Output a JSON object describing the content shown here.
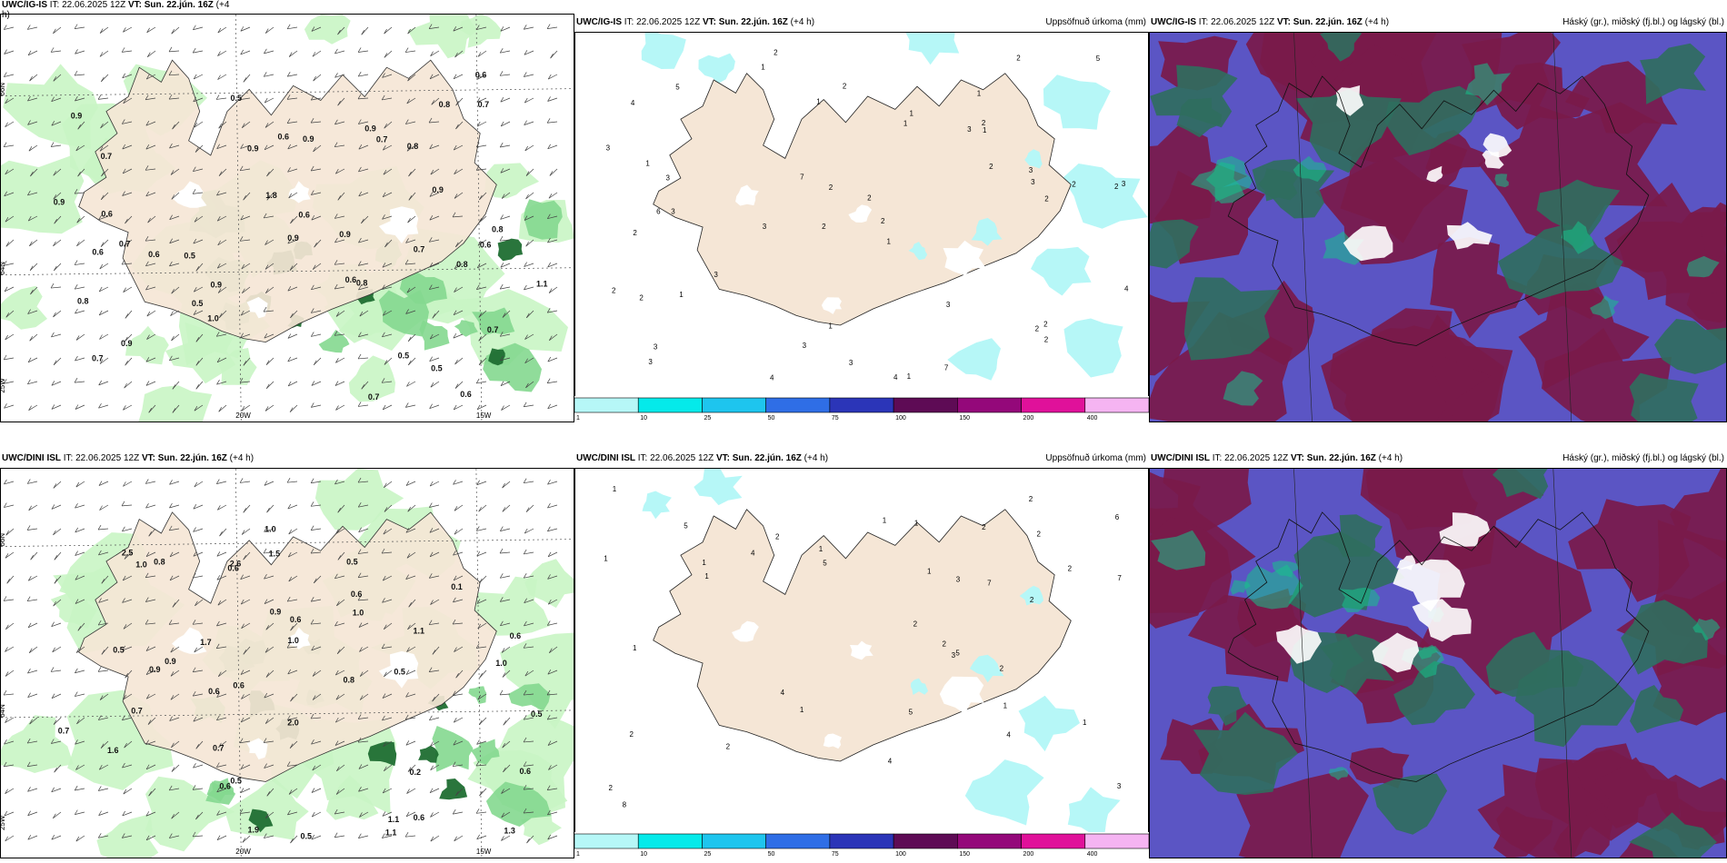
{
  "panels": {
    "row1": {
      "wind": {
        "header_model": "UWC/IG-IS",
        "header_it": "IT: 22.06.2025 12Z",
        "header_vt": "VT: Sun. 22.jún. 16Z",
        "header_lead": "(+4",
        "header_lead2": "h)",
        "lat_labels": [
          "66N",
          "64N"
        ],
        "lon_labels": [
          "20W",
          "15W",
          "25W"
        ],
        "values": [
          "0.6",
          "0.7",
          "0.6",
          "0.9",
          "0.7",
          "0.7",
          "0.9",
          "0.5",
          "0.8",
          "0.6",
          "0.7",
          "0.5",
          "1.0",
          "0.5",
          "0.9",
          "0.8",
          "0.7",
          "0.6",
          "0.9",
          "0.7",
          "0.6",
          "0.9",
          "0.9",
          "1.1",
          "0.8",
          "0.6",
          "0.6",
          "0.9",
          "1.8",
          "0.7",
          "0.8",
          "0.6",
          "0.5",
          "0.9",
          "0.9",
          "0.8",
          "0.6",
          "0.5",
          "0.8",
          "0.7",
          "0.9"
        ]
      },
      "precip": {
        "header_model": "UWC/IG-IS",
        "header_it": "IT: 22.06.2025 12Z",
        "header_vt": "VT: Sun. 22.jún. 16Z",
        "header_lead": "(+4 h)",
        "header_right": "Uppsöfnuð úrkoma (mm)",
        "values": [
          "2",
          "1",
          "2",
          "2",
          "1",
          "3",
          "4",
          "3",
          "2",
          "1",
          "2",
          "3",
          "1",
          "3",
          "4",
          "1",
          "1",
          "2",
          "2",
          "3",
          "3",
          "6",
          "3",
          "2",
          "2",
          "1",
          "2",
          "3",
          "2",
          "2",
          "2",
          "1",
          "1",
          "7",
          "3",
          "4",
          "3",
          "3",
          "5",
          "2",
          "3",
          "4",
          "7",
          "5",
          "3",
          "1",
          "2",
          "2",
          "3",
          "2",
          "1",
          "2"
        ]
      },
      "cloud": {
        "header_model": "UWC/IG-IS",
        "header_it": "IT: 22.06.2025 12Z",
        "header_vt": "VT: Sun. 22.jún. 16Z",
        "header_lead": "(+4 h)",
        "header_right": "Háský (gr.), miðský (fj.bl.) og lágský (bl.)"
      }
    },
    "row2": {
      "wind": {
        "header_model": "UWC/DINI ISL",
        "header_it": "IT: 22.06.2025 12Z",
        "header_vt": "VT: Sun. 22.jún. 16Z",
        "header_lead": "(+4 h)",
        "lat_labels": [
          "66N",
          "64N"
        ],
        "lon_labels": [
          "20W",
          "15W",
          "25W"
        ],
        "values": [
          "0.6",
          "0.6",
          "1.0",
          "0.6",
          "0.6",
          "0.5",
          "0.6",
          "0.6",
          "1.0",
          "0.2",
          "0.5",
          "0.8",
          "1.0",
          "1.5",
          "0.6",
          "0.5",
          "0.5",
          "1.6",
          "0.7",
          "0.5",
          "0.9",
          "0.8",
          "2.0",
          "0.6",
          "0.5",
          "0.1",
          "1.1",
          "0.9",
          "1.1",
          "1.1",
          "0.6",
          "1.0",
          "0.9",
          "0.7",
          "1.9",
          "2.5",
          "2.6",
          "1.3",
          "1.0",
          "0.7",
          "1.7"
        ]
      },
      "precip": {
        "header_model": "UWC/DINI ISL",
        "header_it": "IT: 22.06.2025 12Z",
        "header_vt": "VT: Sun. 22.jún. 16Z",
        "header_lead": "(+4 h)",
        "header_right": "Uppsöfnuð úrkoma (mm)",
        "values": [
          "1",
          "2",
          "1",
          "1",
          "1",
          "2",
          "2",
          "2",
          "1",
          "1",
          "2",
          "2",
          "1",
          "1",
          "2",
          "4",
          "2",
          "2",
          "3",
          "1",
          "2",
          "2",
          "1",
          "5",
          "3",
          "4",
          "6",
          "4",
          "4",
          "5",
          "3",
          "5",
          "5",
          "7",
          "7",
          "8",
          "1",
          "2",
          "1"
        ]
      },
      "cloud": {
        "header_model": "UWC/DINI ISL",
        "header_it": "IT: 22.06.2025 12Z",
        "header_vt": "VT: Sun. 22.jún. 16Z",
        "header_lead": "(+4 h)",
        "header_right": "Háský (gr.), miðský (fj.bl.) og lágský (bl.)"
      }
    }
  },
  "colorbar": {
    "ticks": [
      "1",
      "10",
      "25",
      "50",
      "75",
      "100",
      "150",
      "200",
      "400"
    ],
    "colors": [
      "#b6f7f7",
      "#05eaea",
      "#1ec5ee",
      "#2f6ee6",
      "#2b35b8",
      "#5e0b55",
      "#94087a",
      "#e0119a",
      "#f5b4f2"
    ]
  },
  "colors": {
    "land": "#f5e6d6",
    "wind_light": "#c9f5c4",
    "wind_mid": "#84d88f",
    "wind_dark": "#1f6e32",
    "precip_light": "#b6f7f7",
    "cloud_high": "#7a1a4a",
    "cloud_mid": "#5b55c4",
    "cloud_low": "#2f6e5e"
  }
}
